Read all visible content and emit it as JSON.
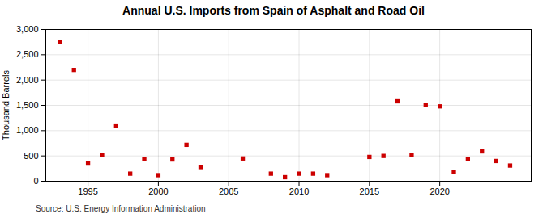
{
  "chart_data": {
    "type": "scatter",
    "title": "Annual U.S. Imports from Spain of Asphalt and Road Oil",
    "ylabel": "Thousand Barrels",
    "annotation": "Source: U.S. Energy Information Administration",
    "x": [
      1993,
      1994,
      1995,
      1996,
      1997,
      1998,
      1999,
      2000,
      2001,
      2002,
      2003,
      2006,
      2008,
      2009,
      2010,
      2011,
      2012,
      2015,
      2016,
      2017,
      2018,
      2019,
      2020,
      2021,
      2022,
      2023,
      2024,
      2025
    ],
    "values": [
      2750,
      2200,
      350,
      520,
      1100,
      150,
      440,
      120,
      430,
      720,
      280,
      450,
      150,
      80,
      150,
      150,
      120,
      480,
      500,
      1580,
      520,
      1510,
      1480,
      180,
      440,
      590,
      400,
      310
    ],
    "color": "#cc0000",
    "marker": "square",
    "grid": true,
    "xlim": [
      1992.0,
      2026.5
    ],
    "xticks": [
      1995,
      2000,
      2005,
      2010,
      2015,
      2020
    ],
    "ylim": [
      0,
      3000
    ],
    "yticks": [
      0,
      500,
      {
        "value": 1000,
        "label": "1,000"
      },
      {
        "value": 1500,
        "label": "1,500"
      },
      {
        "value": 2000,
        "label": "2,000"
      },
      {
        "value": 2500,
        "label": "2,500"
      },
      {
        "value": 3000,
        "label": "3,000"
      }
    ]
  }
}
